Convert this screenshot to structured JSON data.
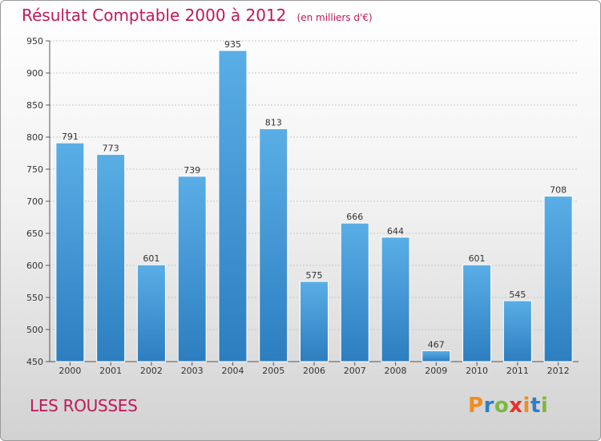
{
  "page": {
    "title": "Résultat Comptable 2000 à 2012",
    "subtitle": "(en milliers d'€)",
    "location": "LES ROUSSES",
    "logo": {
      "text": "Proxiti",
      "colors": [
        "#f28c1c",
        "#2a7fc6",
        "#7cb83a",
        "#e8302a",
        "#f28c1c",
        "#2a7fc6",
        "#7cb83a"
      ]
    }
  },
  "chart_data": {
    "type": "bar",
    "title": "Résultat Comptable 2000 à 2012",
    "subtitle": "(en milliers d'€)",
    "xlabel": "",
    "ylabel": "",
    "categories": [
      "2000",
      "2001",
      "2002",
      "2003",
      "2004",
      "2005",
      "2006",
      "2007",
      "2008",
      "2009",
      "2010",
      "2011",
      "2012"
    ],
    "values": [
      791,
      773,
      601,
      739,
      935,
      813,
      575,
      666,
      644,
      467,
      601,
      545,
      708
    ],
    "ylim": [
      450,
      950
    ],
    "yticks": [
      450,
      500,
      550,
      600,
      650,
      700,
      750,
      800,
      850,
      900,
      950
    ],
    "grid": true,
    "colors": {
      "bar_light": "#5aaee6",
      "bar_dark": "#2c7ec0",
      "grid": "#c8c8c8"
    }
  }
}
